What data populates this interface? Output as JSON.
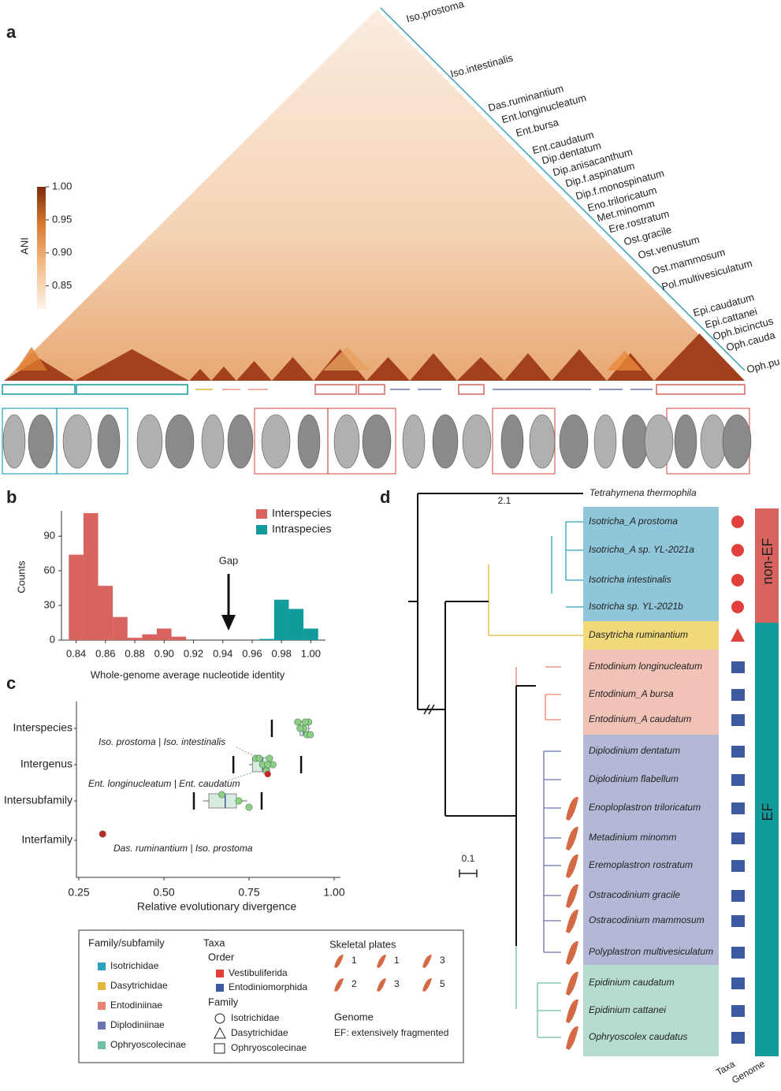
{
  "panel_labels": [
    "a",
    "b",
    "c",
    "d"
  ],
  "heatmap": {
    "colorbar_label": "ANI",
    "lim": [
      0.815,
      1.0
    ],
    "ticks": [
      {
        "value": 1.0,
        "label": "1.00"
      },
      0.95,
      {
        "value": 0.9,
        "label": "0.90"
      },
      0.85
    ],
    "taxa": [
      "Iso.prostoma",
      "Iso.intestinalis",
      "Das.ruminantium",
      "Ent.longinucleatum",
      "Ent.bursa",
      "Ent.caudatum",
      "Dip.dentatum",
      "Dip.anisacanthum",
      "Dip.f.aspinatum",
      "Dip.f.monospinatum",
      "Eno.triloricatum",
      "Met.minomm",
      "Ere.rostratum",
      "Ost.gracile",
      "Ost.venustum",
      "Ost.mammosum",
      "Pol.multivesiculatum",
      "Epi.caudatum",
      "Epi.cattanei",
      "Oph.bicinctus",
      "Oph.cauda",
      "Oph.pu"
    ]
  },
  "chart_data": [
    {
      "type": "histogram",
      "bins": [
        0.835,
        0.845,
        0.855,
        0.865,
        0.875,
        0.885,
        0.895,
        0.905,
        0.915,
        0.925,
        0.935,
        0.945,
        0.955,
        0.965,
        0.975,
        0.985,
        0.995,
        1.005
      ],
      "series": [
        {
          "name": "Interspecies",
          "color": "#d9635e",
          "values": [
            74,
            110,
            47,
            20,
            2,
            5,
            10,
            3,
            0,
            0,
            0,
            0,
            0,
            0,
            0,
            0,
            0
          ]
        },
        {
          "name": "Intraspecies",
          "color": "#119b9b",
          "values": [
            0,
            0,
            0,
            0,
            0,
            0,
            0,
            0,
            0,
            0,
            0,
            0,
            0,
            1,
            35,
            27,
            10
          ]
        }
      ],
      "xlim": [
        0.83,
        1.01
      ],
      "xticks": [
        0.84,
        0.86,
        0.88,
        {
          "value": 0.9,
          "label": "0.90"
        },
        0.92,
        0.94,
        0.96,
        0.98,
        {
          "value": 1.0,
          "label": "1.00"
        }
      ],
      "ylim": [
        0,
        112
      ],
      "yticks": [
        0,
        30,
        60,
        90
      ],
      "x_label": "Whole-genome average nucleotide identity",
      "y_label": "Counts",
      "annotation": "Gap"
    },
    {
      "type": "box",
      "categories": [
        "Interspecies",
        "Intergenus",
        "Intersubfamily",
        "Interfamily"
      ],
      "boxes": [
        {
          "min": 0.893,
          "q1": 0.9,
          "median": 0.91,
          "q3": 0.925,
          "max": 0.93
        },
        {
          "min": 0.75,
          "q1": 0.76,
          "median": 0.79,
          "q3": 0.81,
          "max": 0.83
        },
        {
          "min": 0.615,
          "q1": 0.632,
          "median": 0.68,
          "q3": 0.713,
          "max": 0.745
        },
        null
      ],
      "points": [
        [
          0.893,
          0.91,
          0.92,
          0.925,
          0.9,
          0.93,
          0.915
        ],
        [
          0.77,
          0.79,
          0.8,
          0.81,
          0.82,
          0.8,
          0.78,
          0.805
        ],
        [
          0.67,
          0.72,
          0.75
        ],
        [
          0.32
        ]
      ],
      "point_colors": [
        "#8ccf87",
        "#8ccf87",
        "#8ccf87",
        "#c0282e"
      ],
      "thresholds": [
        [
          0.817
        ],
        [
          0.704,
          0.903
        ],
        [
          0.588,
          0.787
        ],
        []
      ],
      "xlim": [
        0.25,
        1.0
      ],
      "xticks": [
        0.25,
        {
          "value": 0.5,
          "label": "0.50"
        },
        0.75,
        {
          "value": 1.0,
          "label": "1.00"
        }
      ],
      "x_label": "Relative evolutionary divergence",
      "annotations": [
        "Iso. prostoma | Iso. intestinalis",
        "Ent. longinucleatum | Ent. caudatum",
        "Das. ruminantium | Iso. prostoma"
      ]
    }
  ],
  "tree": {
    "outgroup": "Tetrahymena thermophila",
    "root_length_label": "2.1",
    "scale_label": "0.1",
    "taxa": [
      "Isotricha_A prostoma",
      "Isotricha_A sp. YL-2021a",
      "Isotricha intestinalis",
      "Isotricha sp. YL-2021b",
      "Dasytricha ruminantium",
      "Entodinium longinucleatum",
      "Entodinium_A bursa",
      "Entodinium_A caudatum",
      "Diplodinium dentatum",
      "Diplodinium flabellum",
      "Enoploplastron triloricatum",
      "Metadinium minomm",
      "Eremoplastron rostratum",
      "Ostracodinium gracile",
      "Ostracodinium mammosum",
      "Polyplastron multivesiculatum",
      "Epidinium caudatum",
      "Epidinium cattanei",
      "Ophryoscolex caudatus"
    ],
    "genome_labels": [
      "non-EF",
      "EF"
    ],
    "column_labels": [
      "Taxa",
      "Genome"
    ]
  },
  "legend": {
    "family_title": "Family/subfamily",
    "families": [
      "Isotrichidae",
      "Dasytrichidae",
      "Entodiniinae",
      "Diplodiniinae",
      "Ophryoscolecinae"
    ],
    "taxa_title": "Taxa",
    "order_title": "Order",
    "orders": [
      "Vestibuliferida",
      "Entodiniomorphida"
    ],
    "family_shape_title": "Family",
    "family_shapes": [
      "Isotrichidae",
      "Dasytrichidae",
      "Ophryoscolecinae"
    ],
    "plates_title": "Skeletal plates",
    "plate_numbers": [
      "1",
      "1",
      "3",
      "2",
      "3",
      "5"
    ],
    "genome_title": "Genome",
    "genome_note": "EF: extensively fragmented"
  }
}
